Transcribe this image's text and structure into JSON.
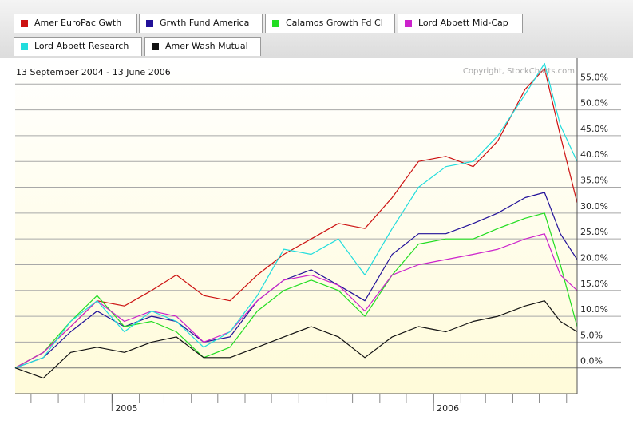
{
  "legend": [
    {
      "label": "Amer EuroPac Gwth",
      "color": "#cc1111"
    },
    {
      "label": "Grwth Fund America",
      "color": "#221199"
    },
    {
      "label": "Calamos Growth Fd Cl",
      "color": "#22dd22"
    },
    {
      "label": "Lord Abbett Mid-Cap",
      "color": "#cc22cc"
    },
    {
      "label": "Lord Abbett Research",
      "color": "#22dddd"
    },
    {
      "label": "Amer Wash Mutual",
      "color": "#111111"
    }
  ],
  "date_range": "13 September 2004 - 13 June 2006",
  "copyright": "Copyright, StockCharts.com",
  "chart_data": {
    "type": "line",
    "ylim": [
      -5,
      60
    ],
    "yticks": [
      0,
      5,
      10,
      15,
      20,
      25,
      30,
      35,
      40,
      45,
      50,
      55
    ],
    "ytick_labels": [
      "0.0%",
      "5.0%",
      "10.0%",
      "15.0%",
      "20.0%",
      "25.0%",
      "30.0%",
      "35.0%",
      "40.0%",
      "45.0%",
      "50.0%",
      "55.0%"
    ],
    "xlim": [
      "2004-09-13",
      "2006-06-13"
    ],
    "xtick_labels": [
      {
        "label": "2005",
        "date": "2005-01-01"
      },
      {
        "label": "2006",
        "date": "2006-01-01"
      }
    ],
    "grid": true,
    "series": [
      {
        "name": "Amer EuroPac Gwth",
        "color": "#cc1111",
        "x": [
          "2004-09-13",
          "2004-10-15",
          "2004-11-15",
          "2004-12-15",
          "2005-01-15",
          "2005-02-15",
          "2005-03-15",
          "2005-04-15",
          "2005-05-15",
          "2005-06-15",
          "2005-07-15",
          "2005-08-15",
          "2005-09-15",
          "2005-10-15",
          "2005-11-15",
          "2005-12-15",
          "2006-01-15",
          "2006-02-15",
          "2006-03-15",
          "2006-04-15",
          "2006-05-07",
          "2006-05-25",
          "2006-06-13"
        ],
        "y": [
          0,
          3,
          8,
          13,
          12,
          15,
          18,
          14,
          13,
          18,
          22,
          25,
          28,
          27,
          33,
          40,
          41,
          39,
          44,
          54,
          58,
          45,
          32
        ]
      },
      {
        "name": "Grwth Fund America",
        "color": "#221199",
        "x": [
          "2004-09-13",
          "2004-10-15",
          "2004-11-15",
          "2004-12-15",
          "2005-01-15",
          "2005-02-15",
          "2005-03-15",
          "2005-04-15",
          "2005-05-15",
          "2005-06-15",
          "2005-07-15",
          "2005-08-15",
          "2005-09-15",
          "2005-10-15",
          "2005-11-15",
          "2005-12-15",
          "2006-01-15",
          "2006-02-15",
          "2006-03-15",
          "2006-04-15",
          "2006-05-07",
          "2006-05-25",
          "2006-06-13"
        ],
        "y": [
          0,
          2,
          7,
          11,
          8,
          10,
          9,
          5,
          6,
          13,
          17,
          19,
          16,
          13,
          22,
          26,
          26,
          28,
          30,
          33,
          34,
          26,
          21
        ]
      },
      {
        "name": "Calamos Growth Fd Cl",
        "color": "#22dd22",
        "x": [
          "2004-09-13",
          "2004-10-15",
          "2004-11-15",
          "2004-12-15",
          "2005-01-15",
          "2005-02-15",
          "2005-03-15",
          "2005-04-15",
          "2005-05-15",
          "2005-06-15",
          "2005-07-15",
          "2005-08-15",
          "2005-09-15",
          "2005-10-15",
          "2005-11-15",
          "2005-12-15",
          "2006-01-15",
          "2006-02-15",
          "2006-03-15",
          "2006-04-15",
          "2006-05-07",
          "2006-05-25",
          "2006-06-13"
        ],
        "y": [
          0,
          3,
          9,
          14,
          8,
          9,
          7,
          2,
          4,
          11,
          15,
          17,
          15,
          10,
          18,
          24,
          25,
          25,
          27,
          29,
          30,
          20,
          8
        ]
      },
      {
        "name": "Lord Abbett Mid-Cap",
        "color": "#cc22cc",
        "x": [
          "2004-09-13",
          "2004-10-15",
          "2004-11-15",
          "2004-12-15",
          "2005-01-15",
          "2005-02-15",
          "2005-03-15",
          "2005-04-15",
          "2005-05-15",
          "2005-06-15",
          "2005-07-15",
          "2005-08-15",
          "2005-09-15",
          "2005-10-15",
          "2005-11-15",
          "2005-12-15",
          "2006-01-15",
          "2006-02-15",
          "2006-03-15",
          "2006-04-15",
          "2006-05-07",
          "2006-05-25",
          "2006-06-13"
        ],
        "y": [
          0,
          3,
          8,
          13,
          9,
          11,
          10,
          5,
          7,
          13,
          17,
          18,
          16,
          11,
          18,
          20,
          21,
          22,
          23,
          25,
          26,
          18,
          15
        ]
      },
      {
        "name": "Lord Abbett Research",
        "color": "#22dddd",
        "x": [
          "2004-09-13",
          "2004-10-15",
          "2004-11-15",
          "2004-12-15",
          "2005-01-15",
          "2005-02-15",
          "2005-03-15",
          "2005-04-15",
          "2005-05-15",
          "2005-06-15",
          "2005-07-15",
          "2005-08-15",
          "2005-09-15",
          "2005-10-15",
          "2005-11-15",
          "2005-12-15",
          "2006-01-15",
          "2006-02-15",
          "2006-03-15",
          "2006-04-15",
          "2006-05-07",
          "2006-05-25",
          "2006-06-13"
        ],
        "y": [
          0,
          2,
          9,
          13,
          7,
          11,
          9,
          4,
          7,
          14,
          23,
          22,
          25,
          18,
          27,
          35,
          39,
          40,
          45,
          53,
          59,
          47,
          40
        ]
      },
      {
        "name": "Amer Wash Mutual",
        "color": "#111111",
        "x": [
          "2004-09-13",
          "2004-10-15",
          "2004-11-15",
          "2004-12-15",
          "2005-01-15",
          "2005-02-15",
          "2005-03-15",
          "2005-04-15",
          "2005-05-15",
          "2005-06-15",
          "2005-07-15",
          "2005-08-15",
          "2005-09-15",
          "2005-10-15",
          "2005-11-15",
          "2005-12-15",
          "2006-01-15",
          "2006-02-15",
          "2006-03-15",
          "2006-04-15",
          "2006-05-07",
          "2006-05-25",
          "2006-06-13"
        ],
        "y": [
          0,
          -2,
          3,
          4,
          3,
          5,
          6,
          2,
          2,
          4,
          6,
          8,
          6,
          2,
          6,
          8,
          7,
          9,
          10,
          12,
          13,
          9,
          7
        ]
      }
    ]
  }
}
